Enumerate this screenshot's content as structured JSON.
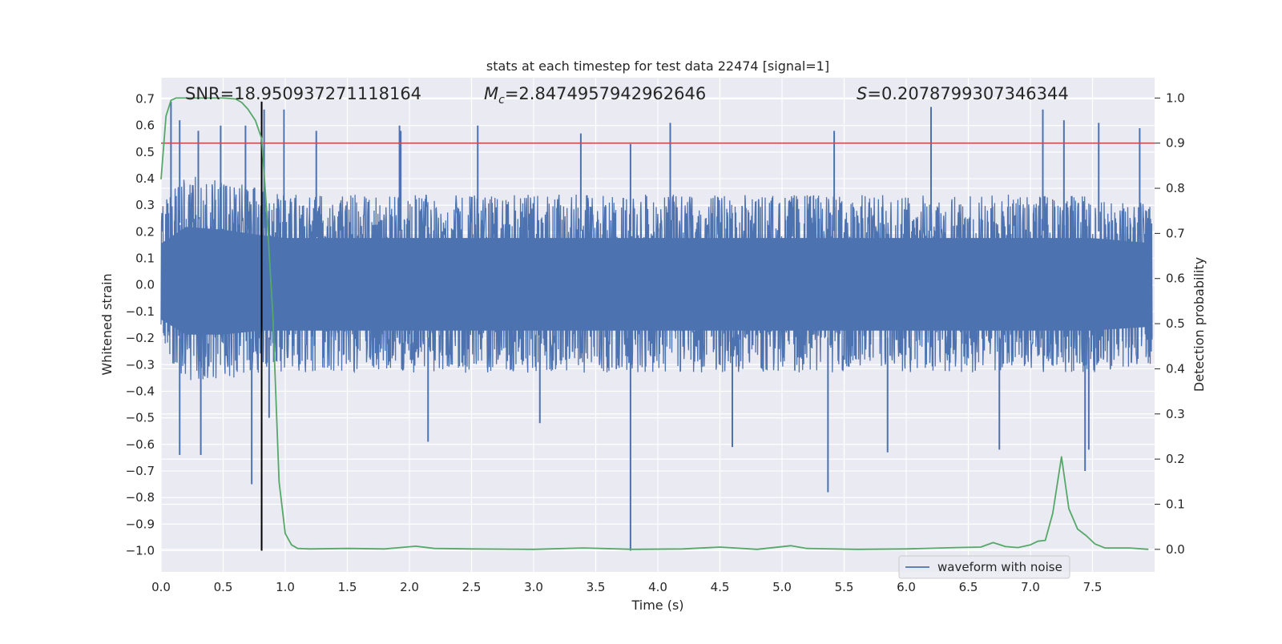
{
  "chart_data": {
    "type": "line",
    "title": "stats at each timestep for test data 22474 [signal=1]",
    "xlabel": "Time (s)",
    "ylabel": "Whitened strain",
    "ylabel_right": "Detection probability",
    "xlim": [
      0.0,
      8.0
    ],
    "ylim": [
      -1.08,
      0.78
    ],
    "ylim_right": [
      -0.05,
      1.045
    ],
    "x_ticks": [
      0.0,
      0.5,
      1.0,
      1.5,
      2.0,
      2.5,
      3.0,
      3.5,
      4.0,
      4.5,
      5.0,
      5.5,
      6.0,
      6.5,
      7.0,
      7.5
    ],
    "x_tick_labels": [
      "0.0",
      "0.5",
      "1.0",
      "1.5",
      "2.0",
      "2.5",
      "3.0",
      "3.5",
      "4.0",
      "4.5",
      "5.0",
      "5.5",
      "6.0",
      "6.5",
      "7.0",
      "7.5"
    ],
    "y_ticks": [
      0.7,
      0.6,
      0.5,
      0.4,
      0.3,
      0.2,
      0.1,
      0.0,
      -0.1,
      -0.2,
      -0.3,
      -0.4,
      -0.5,
      -0.6,
      -0.7,
      -0.8,
      -0.9,
      -1.0
    ],
    "y_tick_labels": [
      "0.7",
      "0.6",
      "0.5",
      "0.4",
      "0.3",
      "0.2",
      "0.1",
      "0.0",
      "−0.1",
      "−0.2",
      "−0.3",
      "−0.4",
      "−0.5",
      "−0.6",
      "−0.7",
      "−0.8",
      "−0.9",
      "−1.0"
    ],
    "y_right_ticks": [
      1.0,
      0.9,
      0.8,
      0.7,
      0.6,
      0.5,
      0.4,
      0.3,
      0.2,
      0.1,
      0.0
    ],
    "y_right_tick_labels": [
      "1.0",
      "0.9",
      "0.8",
      "0.7",
      "0.6",
      "0.5",
      "0.4",
      "0.3",
      "0.2",
      "0.1",
      "0.0"
    ],
    "grid": true,
    "legend_position": "lower right",
    "annotations": {
      "snr": "SNR=18.950937271118164",
      "mc_symbol": "M",
      "mc_subscript": "c",
      "mc_value": "=2.8474957942962646",
      "s_symbol": "S",
      "s_value": "=0.2078799307346344"
    },
    "threshold": {
      "value": 0.9,
      "axis": "right",
      "color": "#c44e52"
    },
    "marker_line": {
      "x": 0.81,
      "color": "#000000"
    },
    "series": [
      {
        "name": "waveform with noise",
        "axis": "left",
        "color": "#4c72b0",
        "envelope": {
          "x": [
            0.0,
            0.2,
            0.5,
            0.8,
            1.0,
            1.5,
            2.0,
            2.5,
            3.0,
            3.5,
            4.0,
            4.5,
            5.0,
            5.5,
            6.0,
            6.5,
            7.0,
            7.5,
            8.0
          ],
          "max": [
            0.3,
            0.42,
            0.4,
            0.36,
            0.34,
            0.34,
            0.34,
            0.34,
            0.34,
            0.34,
            0.34,
            0.34,
            0.34,
            0.34,
            0.34,
            0.34,
            0.34,
            0.34,
            0.3
          ],
          "min": [
            -0.25,
            -0.36,
            -0.36,
            -0.33,
            -0.33,
            -0.33,
            -0.33,
            -0.33,
            -0.33,
            -0.33,
            -0.33,
            -0.33,
            -0.33,
            -0.33,
            -0.33,
            -0.33,
            -0.33,
            -0.33,
            -0.3
          ]
        },
        "extremes": [
          {
            "x": 0.08,
            "y": 0.69
          },
          {
            "x": 0.15,
            "y": 0.62
          },
          {
            "x": 0.3,
            "y": 0.58
          },
          {
            "x": 0.48,
            "y": 0.6
          },
          {
            "x": 0.68,
            "y": 0.6
          },
          {
            "x": 0.83,
            "y": 0.66
          },
          {
            "x": 0.99,
            "y": 0.66
          },
          {
            "x": 1.25,
            "y": 0.58
          },
          {
            "x": 1.93,
            "y": 0.58
          },
          {
            "x": 1.92,
            "y": 0.6
          },
          {
            "x": 2.55,
            "y": 0.6
          },
          {
            "x": 3.38,
            "y": 0.57
          },
          {
            "x": 3.78,
            "y": 0.53
          },
          {
            "x": 4.1,
            "y": 0.61
          },
          {
            "x": 5.42,
            "y": 0.58
          },
          {
            "x": 6.2,
            "y": 0.67
          },
          {
            "x": 7.1,
            "y": 0.66
          },
          {
            "x": 7.27,
            "y": 0.62
          },
          {
            "x": 7.55,
            "y": 0.61
          },
          {
            "x": 7.88,
            "y": 0.59
          },
          {
            "x": 0.15,
            "y": -0.64
          },
          {
            "x": 0.32,
            "y": -0.64
          },
          {
            "x": 0.73,
            "y": -0.75
          },
          {
            "x": 0.87,
            "y": -0.5
          },
          {
            "x": 2.15,
            "y": -0.59
          },
          {
            "x": 3.78,
            "y": -1.0
          },
          {
            "x": 3.05,
            "y": -0.52
          },
          {
            "x": 4.6,
            "y": -0.61
          },
          {
            "x": 5.37,
            "y": -0.78
          },
          {
            "x": 5.85,
            "y": -0.63
          },
          {
            "x": 6.75,
            "y": -0.62
          },
          {
            "x": 7.44,
            "y": -0.7
          },
          {
            "x": 7.47,
            "y": -0.62
          }
        ]
      },
      {
        "name": "",
        "axis": "right",
        "color": "#55a868",
        "x": [
          0.0,
          0.04,
          0.08,
          0.12,
          0.2,
          0.5,
          0.6,
          0.65,
          0.7,
          0.76,
          0.81,
          0.85,
          0.9,
          0.95,
          1.0,
          1.05,
          1.1,
          1.2,
          1.5,
          1.8,
          2.05,
          2.2,
          2.5,
          3.0,
          3.4,
          3.8,
          4.2,
          4.5,
          4.8,
          5.07,
          5.2,
          5.6,
          6.0,
          6.4,
          6.6,
          6.7,
          6.8,
          6.9,
          7.0,
          7.06,
          7.12,
          7.18,
          7.25,
          7.31,
          7.38,
          7.45,
          7.52,
          7.6,
          7.8,
          7.95
        ],
        "y": [
          0.82,
          0.96,
          0.995,
          1.0,
          1.0,
          1.0,
          0.998,
          0.99,
          0.975,
          0.95,
          0.91,
          0.75,
          0.52,
          0.15,
          0.035,
          0.01,
          0.002,
          0.001,
          0.002,
          0.001,
          0.007,
          0.002,
          0.001,
          0.0,
          0.003,
          0.0,
          0.001,
          0.005,
          0.0,
          0.008,
          0.002,
          0.0,
          0.001,
          0.004,
          0.005,
          0.015,
          0.006,
          0.004,
          0.01,
          0.018,
          0.02,
          0.08,
          0.205,
          0.09,
          0.045,
          0.03,
          0.012,
          0.003,
          0.003,
          0.0
        ]
      }
    ]
  }
}
